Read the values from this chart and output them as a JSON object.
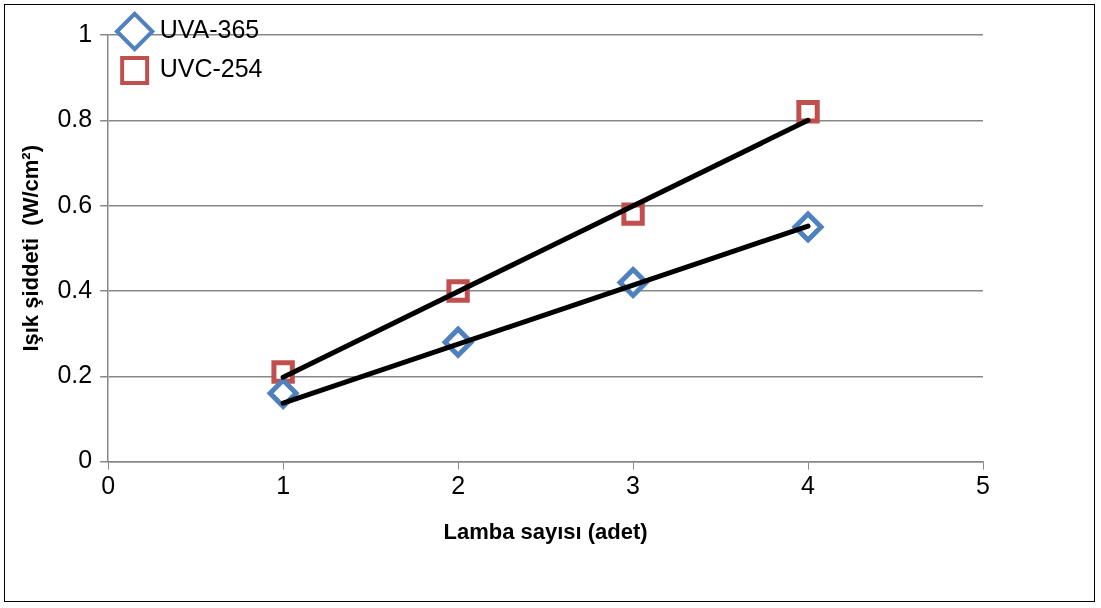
{
  "chart_data": {
    "type": "scatter",
    "xlabel": "Lamba sayısı (adet)",
    "ylabel": "Işık şiddeti  (W/cm²)",
    "xlim": [
      0,
      5
    ],
    "xticks": [
      0,
      1,
      2,
      3,
      4,
      5
    ],
    "ylim": [
      0,
      1
    ],
    "yticks": [
      0,
      0.2,
      0.4,
      0.6,
      0.8,
      1
    ],
    "grid": "y",
    "legend": "top left",
    "series": [
      {
        "name": "UVA-365",
        "color": "#4f81bd",
        "marker": "diamond",
        "x": [
          1,
          2,
          3,
          4
        ],
        "values": [
          0.16,
          0.28,
          0.42,
          0.55
        ]
      },
      {
        "name": "UVC-254",
        "color": "#c0504d",
        "marker": "square",
        "x": [
          1,
          2,
          3,
          4
        ],
        "values": [
          0.21,
          0.4,
          0.58,
          0.82
        ]
      },
      {
        "type": "line",
        "color": "#000000",
        "marker": "none",
        "x": [
          1,
          4
        ],
        "values": [
          0.137,
          0.552
        ]
      },
      {
        "type": "line",
        "color": "#000000",
        "marker": "none",
        "x": [
          1,
          4
        ],
        "values": [
          0.198,
          0.8
        ]
      }
    ]
  }
}
